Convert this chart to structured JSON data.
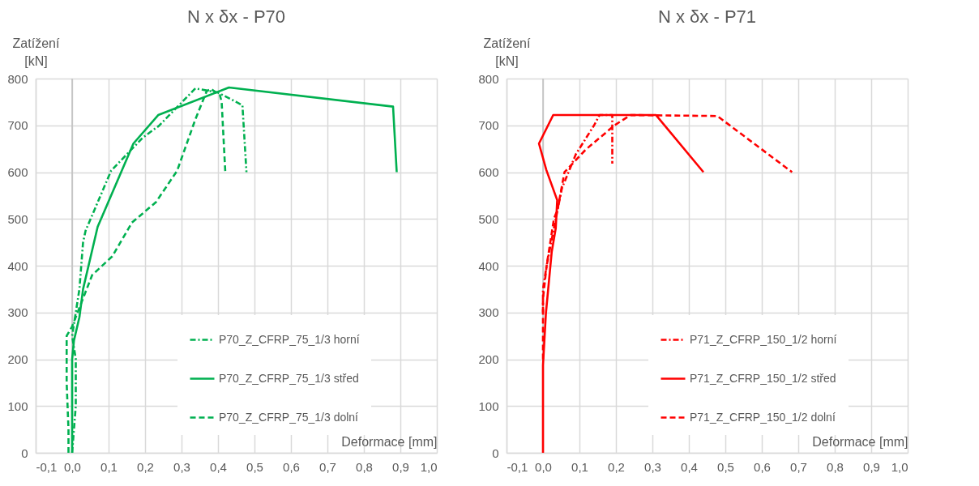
{
  "chart_data": [
    {
      "type": "line",
      "title": "N x δx - P70",
      "xlabel": "Deformace [mm]",
      "ylabel": "Zatížení [kN]",
      "grid": true,
      "legend": "bottom right",
      "xlim": [
        -0.1,
        1.0
      ],
      "ylim": [
        0,
        800
      ],
      "xticks": [
        {
          "value": -0.1,
          "label": "-0,1"
        },
        {
          "value": 0,
          "label": "0,0"
        },
        {
          "value": 0.1,
          "label": "0,1"
        },
        {
          "value": 0.2,
          "label": "0,2"
        },
        {
          "value": 0.3,
          "label": "0,3"
        },
        {
          "value": 0.4,
          "label": "0,4"
        },
        {
          "value": 0.5,
          "label": "0,5"
        },
        {
          "value": 0.6,
          "label": "0,6"
        },
        {
          "value": 0.7,
          "label": "0,7"
        },
        {
          "value": 0.8,
          "label": "0,8"
        },
        {
          "value": 0.9,
          "label": "0,9"
        },
        {
          "value": 1.0,
          "label": "1,0"
        }
      ],
      "yticks": [
        0,
        100,
        200,
        300,
        400,
        500,
        600,
        700,
        800
      ],
      "ref_lines": [
        {
          "axis": "x",
          "value": 0,
          "color": "#bfbfbf"
        }
      ],
      "series": [
        {
          "name": "P70_Z_CFRP_75_1/3 horní",
          "color": "#00b050",
          "line_style": "dashdot",
          "x": [
            0.0,
            0.01,
            0.01,
            0.0,
            0.01,
            0.02,
            0.03,
            0.037,
            0.107,
            0.194,
            0.238,
            0.338,
            0.4,
            0.45,
            0.467,
            0.478
          ],
          "values": [
            0,
            100,
            200,
            250,
            300,
            350,
            450,
            475,
            603,
            674,
            699,
            779,
            770,
            750,
            743,
            600
          ]
        },
        {
          "name": "P70_Z_CFRP_75_1/3 střed",
          "color": "#00b050",
          "line_style": "solid",
          "x": [
            0.0,
            0.0,
            0.0,
            0.005,
            0.02,
            0.03,
            0.07,
            0.168,
            0.236,
            0.43,
            0.88,
            0.89
          ],
          "values": [
            0,
            100,
            200,
            240,
            290,
            350,
            483,
            661,
            722,
            781,
            740,
            600
          ]
        },
        {
          "name": "P70_Z_CFRP_75_1/3 dolní",
          "color": "#00b050",
          "line_style": "dashed",
          "x": [
            -0.01,
            -0.01,
            -0.015,
            -0.015,
            0.0,
            0.03,
            0.055,
            0.11,
            0.164,
            0.23,
            0.288,
            0.338,
            0.369,
            0.38,
            0.405,
            0.41,
            0.42
          ],
          "values": [
            0,
            50,
            150,
            250,
            270,
            330,
            380,
            420,
            492,
            536,
            603,
            713,
            773,
            778,
            765,
            750,
            600
          ]
        }
      ]
    },
    {
      "type": "line",
      "title": "N x δx - P71",
      "xlabel": "Deformace [mm]",
      "ylabel": "Zatížení [kN]",
      "grid": true,
      "legend": "bottom right",
      "xlim": [
        -0.1,
        1.0
      ],
      "ylim": [
        0,
        800
      ],
      "xticks": [
        {
          "value": -0.1,
          "label": "-0,1"
        },
        {
          "value": 0,
          "label": "0,0"
        },
        {
          "value": 0.1,
          "label": "0,1"
        },
        {
          "value": 0.2,
          "label": "0,2"
        },
        {
          "value": 0.3,
          "label": "0,3"
        },
        {
          "value": 0.4,
          "label": "0,4"
        },
        {
          "value": 0.5,
          "label": "0,5"
        },
        {
          "value": 0.6,
          "label": "0,6"
        },
        {
          "value": 0.7,
          "label": "0,7"
        },
        {
          "value": 0.8,
          "label": "0,8"
        },
        {
          "value": 0.9,
          "label": "0,9"
        },
        {
          "value": 1.0,
          "label": "1,0"
        }
      ],
      "yticks": [
        0,
        100,
        200,
        300,
        400,
        500,
        600,
        700,
        800
      ],
      "ref_lines": [
        {
          "axis": "x",
          "value": 0,
          "color": "#bfbfbf"
        }
      ],
      "series": [
        {
          "name": "P71_Z_CFRP_150_1/2 horní",
          "color": "#ff0000",
          "line_style": "dashdot",
          "x": [
            0.0,
            0.0,
            0.01,
            0.03,
            0.052,
            0.09,
            0.14,
            0.155,
            0.19,
            0.19
          ],
          "values": [
            300,
            350,
            400,
            480,
            566,
            638,
            700,
            722,
            722,
            618
          ]
        },
        {
          "name": "P71_Z_CFRP_150_1/2 střed",
          "color": "#ff0000",
          "line_style": "solid",
          "x": [
            0.0,
            0.0,
            0.0,
            0.008,
            0.024,
            0.035,
            0.039,
            0.009,
            -0.011,
            0.028,
            0.31,
            0.44
          ],
          "values": [
            0,
            100,
            187,
            298,
            430,
            480,
            540,
            605,
            661,
            722,
            722,
            600
          ]
        },
        {
          "name": "P71_Z_CFRP_150_1/2 dolní",
          "color": "#ff0000",
          "line_style": "dashed",
          "x": [
            0.0,
            0.0,
            0.01,
            0.03,
            0.04,
            0.059,
            0.117,
            0.196,
            0.24,
            0.478,
            0.683
          ],
          "values": [
            200,
            330,
            400,
            500,
            520,
            600,
            648,
            700,
            722,
            720,
            600
          ]
        }
      ]
    }
  ]
}
